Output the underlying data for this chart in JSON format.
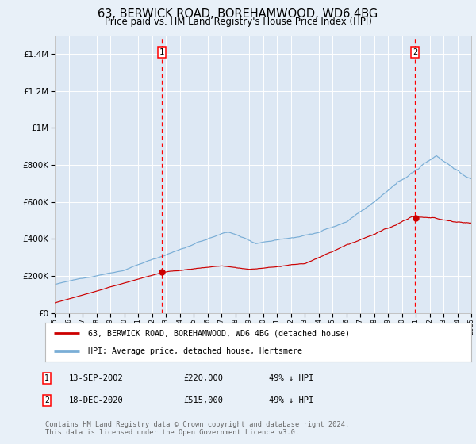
{
  "title": "63, BERWICK ROAD, BOREHAMWOOD, WD6 4BG",
  "subtitle": "Price paid vs. HM Land Registry's House Price Index (HPI)",
  "title_fontsize": 10.5,
  "subtitle_fontsize": 8.5,
  "background_color": "#e8f0f8",
  "plot_bg_color": "#dde8f4",
  "ylim": [
    0,
    1500000
  ],
  "yticks": [
    0,
    200000,
    400000,
    600000,
    800000,
    1000000,
    1200000,
    1400000
  ],
  "ytick_labels": [
    "£0",
    "£200K",
    "£400K",
    "£600K",
    "£800K",
    "£1M",
    "£1.2M",
    "£1.4M"
  ],
  "xstart": 1995,
  "xend": 2025,
  "red_line_color": "#cc0000",
  "blue_line_color": "#7aaed6",
  "transaction1_year": 2002.71,
  "transaction1_price": 220000,
  "transaction2_year": 2020.96,
  "transaction2_price": 515000,
  "legend_label_red": "63, BERWICK ROAD, BOREHAMWOOD, WD6 4BG (detached house)",
  "legend_label_blue": "HPI: Average price, detached house, Hertsmere",
  "footer": "Contains HM Land Registry data © Crown copyright and database right 2024.\nThis data is licensed under the Open Government Licence v3.0.",
  "table_row1": [
    "1",
    "13-SEP-2002",
    "£220,000",
    "49% ↓ HPI"
  ],
  "table_row2": [
    "2",
    "18-DEC-2020",
    "£515,000",
    "49% ↓ HPI"
  ],
  "grid_color": "#ffffff",
  "border_color": "#bbbbbb"
}
